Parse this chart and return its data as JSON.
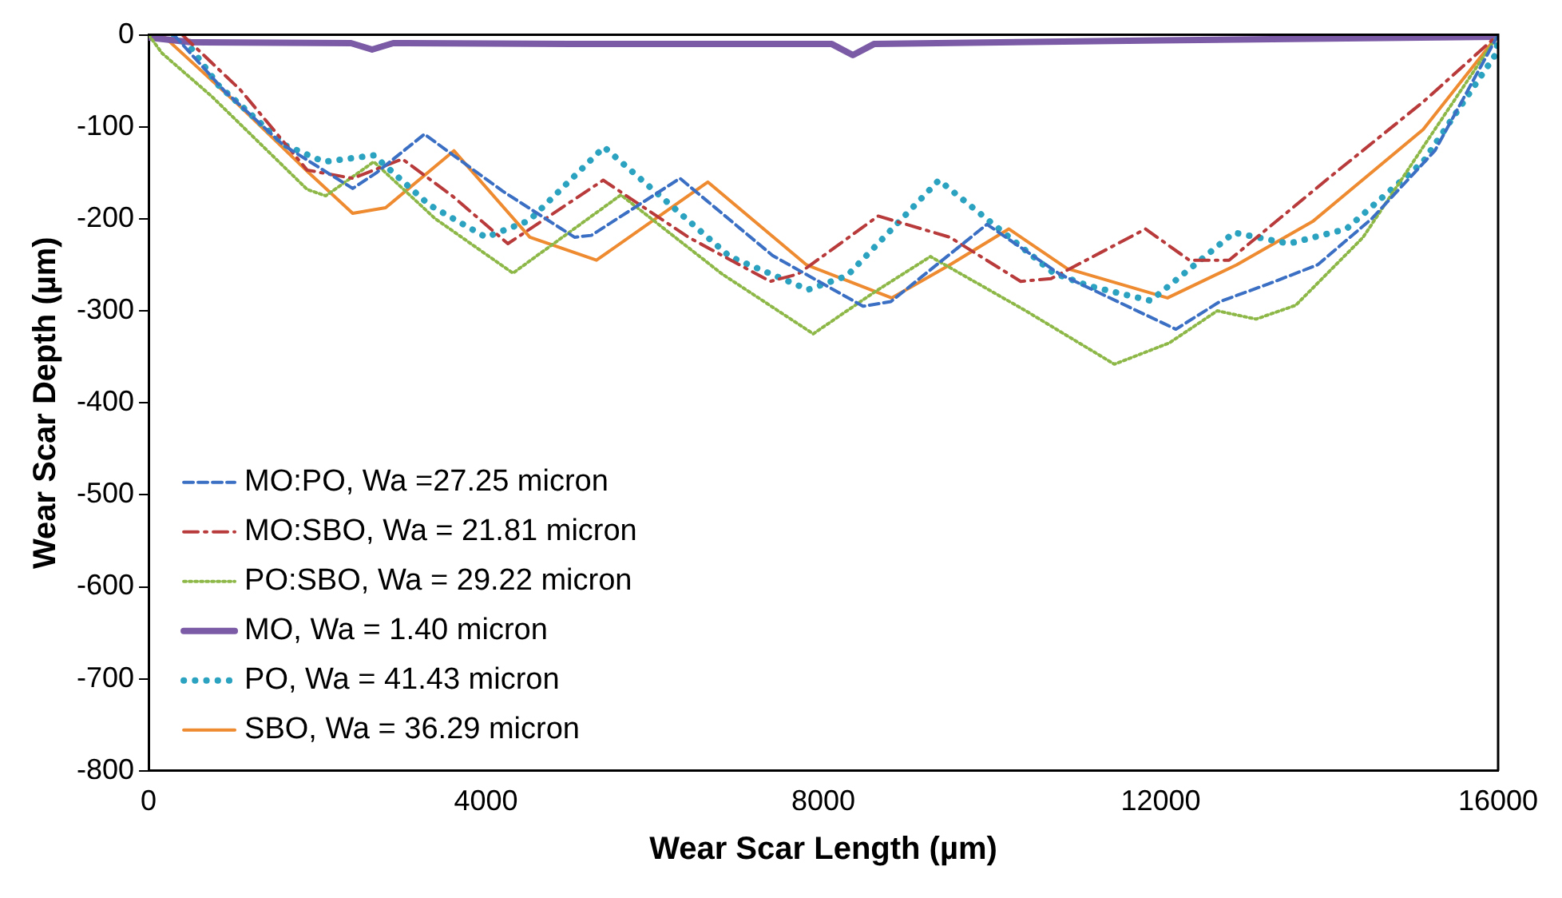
{
  "chart_data": {
    "type": "line",
    "xlabel": "Wear Scar Length (µm)",
    "ylabel": "Wear Scar Depth (µm)",
    "xlim": [
      0,
      16000
    ],
    "xticks": [
      0,
      4000,
      8000,
      12000,
      16000
    ],
    "ylim": [
      -800,
      0
    ],
    "yticks": [
      -800,
      -700,
      -600,
      -500,
      -400,
      -300,
      -200,
      -100,
      0
    ],
    "grid": false,
    "legend": "bottom left",
    "marker": "none",
    "series": [
      {
        "name": "MO:PO, Wa =27.25 micron",
        "color": "#3a6fc4",
        "line_style": "dashed",
        "x": [
          300,
          890,
          1600,
          2420,
          2700,
          3270,
          4200,
          5050,
          5250,
          6300,
          7400,
          8470,
          8800,
          9940,
          10800,
          12180,
          12700,
          13270,
          13860,
          14500,
          15250,
          16000
        ],
        "values": [
          0,
          -60,
          -120,
          -167,
          -150,
          -108,
          -170,
          -220,
          -218,
          -156,
          -240,
          -295,
          -290,
          -206,
          -260,
          -320,
          -290,
          -271,
          -250,
          -200,
          -126,
          0
        ]
      },
      {
        "name": "MO:SBO, Wa = 21.81 micron",
        "color": "#b83a3a",
        "line_style": "dashdot",
        "x": [
          400,
          1090,
          1880,
          2420,
          3010,
          3600,
          4260,
          5390,
          6400,
          7370,
          7700,
          8650,
          9500,
          10340,
          10700,
          11820,
          12340,
          12810,
          14000,
          15110,
          16000
        ],
        "values": [
          0,
          -60,
          -147,
          -156,
          -135,
          -175,
          -227,
          -158,
          -220,
          -268,
          -260,
          -197,
          -220,
          -268,
          -265,
          -211,
          -245,
          -245,
          -155,
          -73,
          0
        ]
      },
      {
        "name": "PO:SBO, Wa = 29.22 micron",
        "color": "#8db848",
        "line_style": "dotted",
        "x": [
          0,
          160,
          750,
          1880,
          2100,
          2670,
          3400,
          4320,
          5600,
          6800,
          7880,
          8600,
          9270,
          10400,
          11450,
          12100,
          12670,
          13130,
          13600,
          14400,
          15110,
          16000
        ],
        "values": [
          0,
          -20,
          -67,
          -168,
          -175,
          -138,
          -200,
          -259,
          -174,
          -260,
          -325,
          -280,
          -241,
          -300,
          -358,
          -335,
          -300,
          -309,
          -294,
          -220,
          -122,
          0
        ]
      },
      {
        "name": "MO, Wa = 1.40 micron",
        "color": "#7b5aa6",
        "line_style": "solid",
        "x": [
          0,
          500,
          2400,
          2650,
          2900,
          5000,
          8100,
          8350,
          8600,
          12000,
          16000
        ],
        "values": [
          -3,
          -8,
          -9,
          -16,
          -9,
          -10,
          -10,
          -22,
          -10,
          -6,
          -2
        ]
      },
      {
        "name": "PO, Wa = 41.43 micron",
        "color": "#2ba3c0",
        "line_style": "dotted",
        "x": [
          300,
          500,
          830,
          1620,
          2080,
          2670,
          3330,
          4000,
          4510,
          5400,
          6890,
          7820,
          8280,
          9370,
          10730,
          11150,
          11880,
          12470,
          12870,
          13520,
          14200,
          15110,
          15980,
          16000
        ],
        "values": [
          0,
          -14,
          -55,
          -120,
          -138,
          -131,
          -185,
          -220,
          -202,
          -122,
          -241,
          -277,
          -262,
          -158,
          -259,
          -273,
          -289,
          -245,
          -215,
          -227,
          -211,
          -138,
          -20,
          0
        ]
      },
      {
        "name": "SBO, Wa = 36.29 micron",
        "color": "#ee8a30",
        "line_style": "solid",
        "x": [
          160,
          1030,
          1900,
          2420,
          2810,
          3620,
          4520,
          5310,
          6630,
          7800,
          8810,
          9500,
          10200,
          10890,
          12080,
          12900,
          13800,
          15110,
          16000
        ],
        "values": [
          0,
          -73,
          -150,
          -194,
          -188,
          -126,
          -220,
          -245,
          -160,
          -250,
          -286,
          -250,
          -211,
          -254,
          -286,
          -250,
          -203,
          -103,
          0
        ]
      }
    ]
  }
}
